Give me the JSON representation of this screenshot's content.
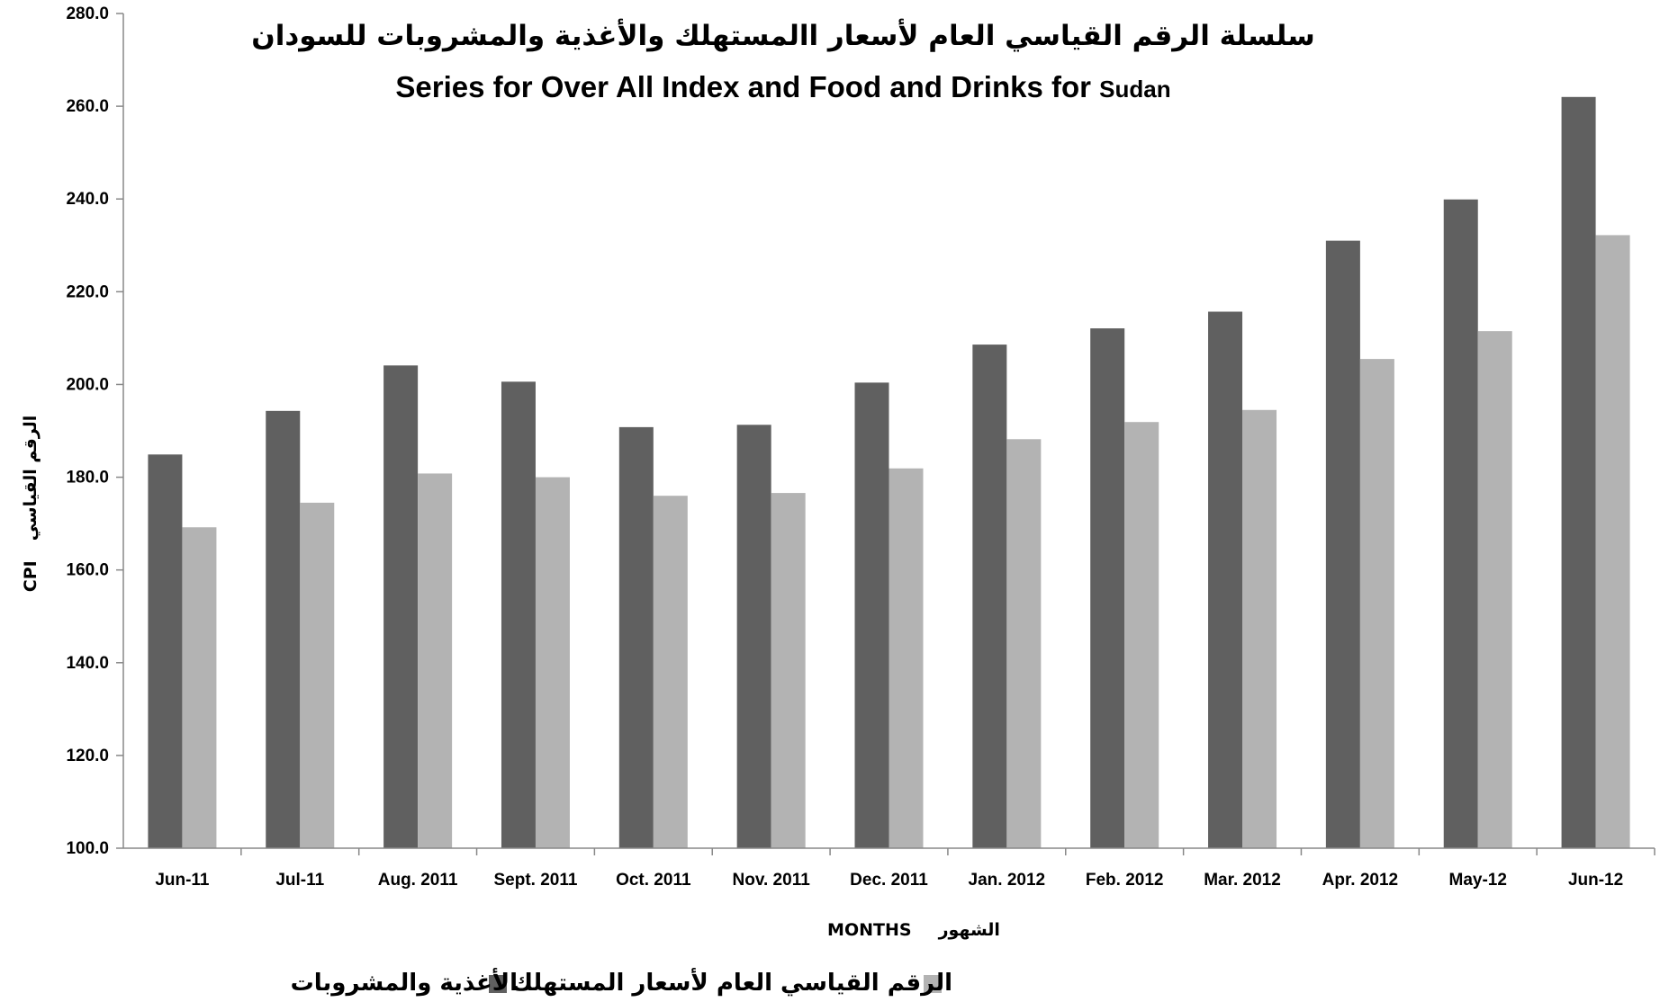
{
  "chart_data": {
    "type": "bar",
    "title_ar": "سلسلة الرقم القياسي العام لأسعار االمستهلك والأغذية والمشروبات للسودان",
    "title_en": "Series for Over All Index and Food and Drinks for",
    "title_en_suffix": "Sudan",
    "xlabel": "MONTHS",
    "xlabel_ar": "الشهور",
    "ylabel": "CPI",
    "ylabel_ar": "الرقم القياسي",
    "ylim": [
      100,
      280
    ],
    "ytick_step": 20,
    "categories": [
      "Jun-11",
      "Jul-11",
      "Aug. 2011",
      "Sept. 2011",
      "Oct. 2011",
      "Nov. 2011",
      "Dec. 2011",
      "Jan. 2012",
      "Feb. 2012",
      "Mar. 2012",
      "Apr. 2012",
      "May-12",
      "Jun-12"
    ],
    "series": [
      {
        "name": "الأغذية والمشروبات",
        "color": "#606060",
        "values": [
          184.9,
          194.3,
          204.1,
          200.6,
          190.8,
          191.3,
          200.4,
          208.6,
          212.1,
          215.7,
          231.0,
          239.9,
          262.0
        ]
      },
      {
        "name": "الرقم القياسي العام لأسعار المستهلك",
        "color": "#b3b3b3",
        "values": [
          169.2,
          174.5,
          180.8,
          180.0,
          176.0,
          176.6,
          181.9,
          188.2,
          191.9,
          194.5,
          205.5,
          211.5,
          232.2
        ]
      }
    ],
    "grid": false,
    "legend_position": "bottom"
  }
}
